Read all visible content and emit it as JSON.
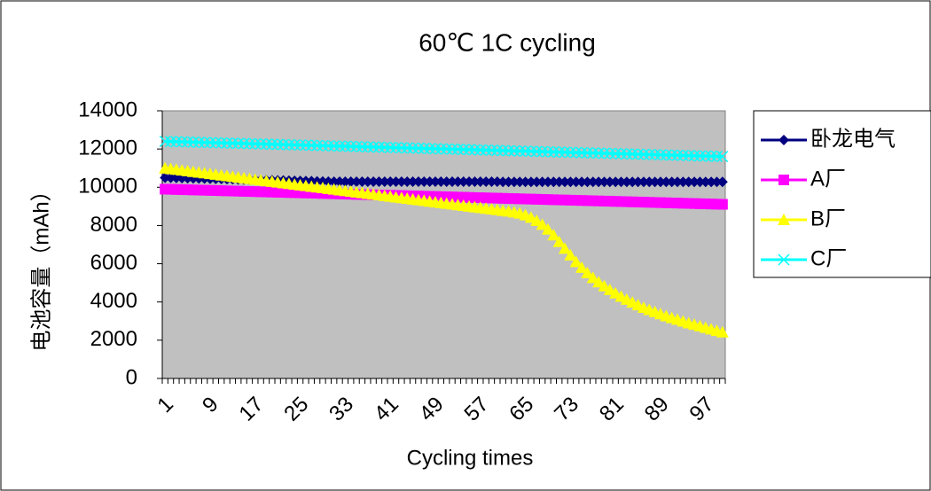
{
  "chart_data": {
    "type": "line",
    "title": "60℃  1C cycling",
    "x_label": "Cycling times",
    "y_label": "电池容量（mAh）",
    "categories": [
      1,
      null,
      null,
      null,
      null,
      null,
      null,
      null,
      9,
      null,
      null,
      null,
      null,
      null,
      null,
      null,
      17,
      null,
      null,
      null,
      null,
      null,
      null,
      null,
      25,
      null,
      null,
      null,
      null,
      null,
      null,
      null,
      33,
      null,
      null,
      null,
      null,
      null,
      null,
      null,
      41,
      null,
      null,
      null,
      null,
      null,
      null,
      null,
      49,
      null,
      null,
      null,
      null,
      null,
      null,
      null,
      57,
      null,
      null,
      null,
      null,
      null,
      null,
      null,
      65,
      null,
      null,
      null,
      null,
      null,
      null,
      null,
      73,
      null,
      null,
      null,
      null,
      null,
      null,
      null,
      81,
      null,
      null,
      null,
      null,
      null,
      null,
      null,
      89,
      null,
      null,
      null,
      null,
      null,
      null,
      null,
      97,
      null,
      null,
      null
    ],
    "ylim": [
      0,
      14000
    ],
    "yticks": [
      0,
      2000,
      4000,
      6000,
      8000,
      10000,
      12000,
      14000
    ],
    "plot_background": "#c0c0c0",
    "legend": "right",
    "series": [
      {
        "name": "卧龙电气",
        "color": "#000080",
        "marker": "diamond",
        "values": [
          10500,
          10493,
          10486,
          10479,
          10472,
          10465,
          10458,
          10451,
          10444,
          10437,
          10430,
          10423,
          10416,
          10409,
          10402,
          10395,
          10388,
          10381,
          10374,
          10367,
          10360,
          10353,
          10346,
          10339,
          10332,
          10325,
          10318,
          10311,
          10304,
          10297,
          10290,
          10290,
          10290,
          10290,
          10290,
          10290,
          10290,
          10290,
          10290,
          10290,
          10290,
          10290,
          10290,
          10290,
          10290,
          10290,
          10290,
          10290,
          10290,
          10290,
          10290,
          10290,
          10290,
          10290,
          10290,
          10290,
          10290,
          10290,
          10290,
          10290,
          10280,
          10280,
          10280,
          10280,
          10280,
          10280,
          10280,
          10280,
          10280,
          10280,
          10280,
          10280,
          10280,
          10280,
          10280,
          10280,
          10280,
          10280,
          10280,
          10280,
          10280,
          10280,
          10280,
          10280,
          10280,
          10280,
          10280,
          10280,
          10280,
          10280,
          10280,
          10280,
          10280,
          10280,
          10280,
          10280,
          10280,
          10280,
          10280,
          10280
        ]
      },
      {
        "name": "A厂",
        "color": "#ff00ff",
        "marker": "square",
        "values": [
          9900,
          9892,
          9884,
          9876,
          9868,
          9860,
          9852,
          9844,
          9836,
          9828,
          9820,
          9812,
          9804,
          9796,
          9788,
          9780,
          9772,
          9764,
          9756,
          9748,
          9740,
          9732,
          9724,
          9716,
          9708,
          9700,
          9692,
          9684,
          9676,
          9668,
          9660,
          9652,
          9644,
          9636,
          9628,
          9620,
          9612,
          9604,
          9596,
          9588,
          9580,
          9572,
          9564,
          9556,
          9548,
          9540,
          9532,
          9524,
          9516,
          9508,
          9500,
          9492,
          9484,
          9476,
          9468,
          9460,
          9452,
          9444,
          9436,
          9428,
          9420,
          9412,
          9404,
          9396,
          9388,
          9380,
          9372,
          9364,
          9356,
          9348,
          9340,
          9332,
          9324,
          9316,
          9308,
          9300,
          9292,
          9284,
          9276,
          9268,
          9260,
          9252,
          9244,
          9236,
          9228,
          9220,
          9212,
          9204,
          9196,
          9188,
          9180,
          9172,
          9164,
          9156,
          9148,
          9140,
          9132,
          9124,
          9116,
          9108
        ]
      },
      {
        "name": "B厂",
        "color": "#ffff00",
        "marker": "triangle",
        "values": [
          11000,
          10963,
          10926,
          10889,
          10852,
          10815,
          10778,
          10741,
          10704,
          10667,
          10630,
          10593,
          10556,
          10519,
          10482,
          10445,
          10408,
          10371,
          10334,
          10297,
          10260,
          10223,
          10186,
          10149,
          10112,
          10075,
          10038,
          10001,
          9964,
          9927,
          9890,
          9853,
          9816,
          9779,
          9742,
          9705,
          9668,
          9631,
          9594,
          9557,
          9520,
          9483,
          9446,
          9409,
          9372,
          9335,
          9298,
          9261,
          9224,
          9187,
          9150,
          9113,
          9076,
          9039,
          9002,
          8965,
          8928,
          8891,
          8854,
          8817,
          8780,
          8743,
          8700,
          8640,
          8550,
          8420,
          8250,
          8050,
          7800,
          7500,
          7150,
          6800,
          6450,
          6100,
          5800,
          5520,
          5270,
          5040,
          4830,
          4640,
          4460,
          4290,
          4130,
          3980,
          3840,
          3710,
          3590,
          3480,
          3370,
          3270,
          3170,
          3080,
          2990,
          2900,
          2820,
          2740,
          2660,
          2580,
          2500,
          2420
        ]
      },
      {
        "name": "C厂",
        "color": "#00ffff",
        "marker": "x",
        "values": [
          12400,
          12392,
          12384,
          12376,
          12368,
          12360,
          12352,
          12344,
          12336,
          12328,
          12320,
          12312,
          12304,
          12296,
          12288,
          12280,
          12272,
          12264,
          12256,
          12248,
          12240,
          12232,
          12224,
          12216,
          12208,
          12200,
          12192,
          12184,
          12176,
          12168,
          12160,
          12152,
          12144,
          12136,
          12128,
          12120,
          12112,
          12104,
          12096,
          12088,
          12080,
          12072,
          12064,
          12056,
          12048,
          12040,
          12032,
          12024,
          12016,
          12008,
          12000,
          11992,
          11984,
          11976,
          11968,
          11960,
          11952,
          11944,
          11936,
          11928,
          11920,
          11912,
          11904,
          11896,
          11888,
          11880,
          11872,
          11864,
          11856,
          11848,
          11840,
          11832,
          11824,
          11816,
          11808,
          11800,
          11792,
          11784,
          11776,
          11768,
          11760,
          11752,
          11744,
          11736,
          11728,
          11720,
          11712,
          11704,
          11696,
          11688,
          11680,
          11672,
          11664,
          11656,
          11648,
          11640,
          11632,
          11624,
          11616,
          11608
        ]
      }
    ]
  }
}
